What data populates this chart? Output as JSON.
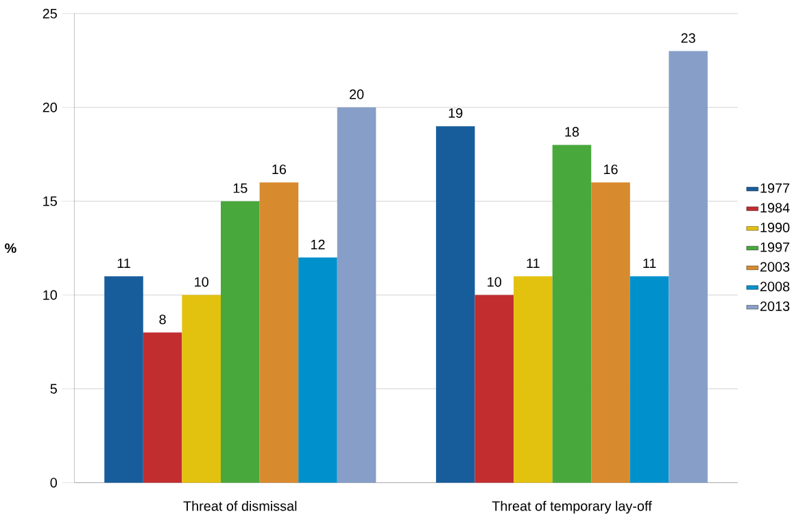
{
  "chart_data": {
    "type": "bar",
    "ylabel": "%",
    "categories": [
      "Threat of dismissal",
      "Threat of temporary lay-off"
    ],
    "series": [
      {
        "name": "1977",
        "color": "#175d9c",
        "values": [
          11,
          19
        ]
      },
      {
        "name": "1984",
        "color": "#c22d2f",
        "values": [
          8,
          10
        ]
      },
      {
        "name": "1990",
        "color": "#e3c10f",
        "values": [
          10,
          11
        ]
      },
      {
        "name": "1997",
        "color": "#48a83c",
        "values": [
          15,
          18
        ]
      },
      {
        "name": "2003",
        "color": "#d88a2e",
        "values": [
          16,
          16
        ]
      },
      {
        "name": "2008",
        "color": "#0091cc",
        "values": [
          12,
          11
        ]
      },
      {
        "name": "2013",
        "color": "#879fc8",
        "values": [
          20,
          23
        ]
      }
    ],
    "ylim": [
      0,
      25
    ],
    "yticks": [
      0,
      5,
      10,
      15,
      20,
      25
    ],
    "grid": "y",
    "legend": "right",
    "data_labels": true
  }
}
